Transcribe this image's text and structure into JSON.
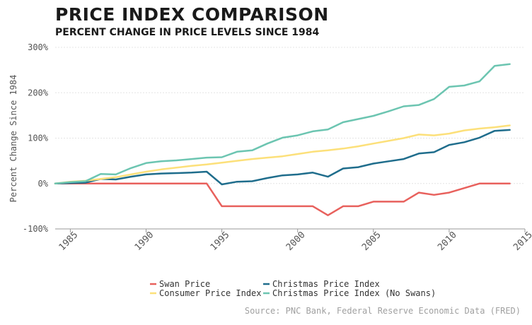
{
  "chart_data": {
    "type": "line",
    "title": "PRICE INDEX COMPARISON",
    "subtitle": "PERCENT CHANGE IN PRICE LEVELS SINCE 1984",
    "xlabel": "",
    "ylabel": "Percent Change Since 1984",
    "xlim": [
      1984,
      2015
    ],
    "ylim": [
      -100,
      300
    ],
    "x_ticks": [
      1985,
      1990,
      1995,
      2000,
      2005,
      2010,
      2015
    ],
    "x_tick_labels": [
      "1985",
      "1990",
      "1995",
      "2000",
      "2005",
      "2010",
      "2015"
    ],
    "y_ticks": [
      -100,
      0,
      100,
      200,
      300
    ],
    "y_tick_labels": [
      "-100%",
      "0%",
      "100%",
      "200%",
      "300%"
    ],
    "grid": "horizontal",
    "legend_position": "bottom",
    "x": [
      1984,
      1985,
      1986,
      1987,
      1988,
      1989,
      1990,
      1991,
      1992,
      1993,
      1994,
      1995,
      1996,
      1997,
      1998,
      1999,
      2000,
      2001,
      2002,
      2003,
      2004,
      2005,
      2006,
      2007,
      2008,
      2009,
      2010,
      2011,
      2012,
      2013,
      2014
    ],
    "series": [
      {
        "name": "Swan Price",
        "color": "#e8615d",
        "values": [
          0,
          0,
          0,
          0,
          0,
          0,
          0,
          0,
          0,
          0,
          0,
          -50,
          -50,
          -50,
          -50,
          -50,
          -50,
          -50,
          -70,
          -50,
          -50,
          -40,
          -40,
          -40,
          -20,
          -25,
          -20,
          -10,
          0,
          0,
          0
        ]
      },
      {
        "name": "Christmas Price Index",
        "color": "#1f6d8c",
        "values": [
          0,
          1,
          2,
          10,
          9,
          15,
          20,
          22,
          23,
          24,
          26,
          -2,
          4,
          5,
          12,
          18,
          20,
          24,
          15,
          33,
          36,
          44,
          49,
          54,
          66,
          69,
          85,
          91,
          101,
          116,
          118
        ]
      },
      {
        "name": "Consumer Price Index",
        "color": "#fce07a",
        "values": [
          0,
          4,
          6,
          10,
          14,
          20,
          26,
          31,
          35,
          39,
          42,
          46,
          50,
          54,
          57,
          60,
          65,
          70,
          73,
          77,
          82,
          88,
          94,
          100,
          108,
          106,
          110,
          117,
          121,
          124,
          128
        ]
      },
      {
        "name": "Christmas Price Index (No Swans)",
        "color": "#6cc5b1",
        "values": [
          0,
          3,
          5,
          21,
          20,
          34,
          45,
          49,
          51,
          54,
          57,
          58,
          70,
          73,
          88,
          101,
          106,
          115,
          119,
          135,
          142,
          149,
          159,
          170,
          173,
          186,
          213,
          216,
          225,
          259,
          263
        ]
      }
    ],
    "source": "Source: PNC Bank, Federal Reserve Economic Data (FRED)"
  }
}
